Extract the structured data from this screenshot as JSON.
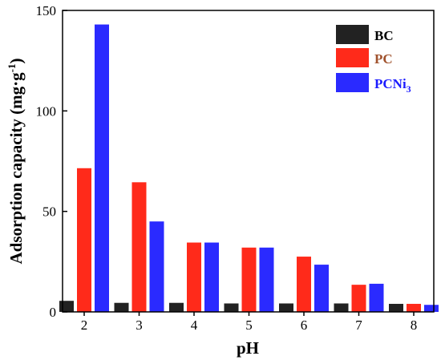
{
  "chart_data": {
    "type": "bar",
    "title": "",
    "xlabel": "pH",
    "ylabel_main": "Adsorption capacity (mg·g",
    "ylabel_sup": "-1",
    "ylabel_close": ")",
    "categories": [
      "2",
      "3",
      "4",
      "5",
      "6",
      "7",
      "8"
    ],
    "ylim": [
      0,
      150
    ],
    "yticks": [
      "0",
      "50",
      "100",
      "150"
    ],
    "grid": false,
    "legend_position": "top-right",
    "series": [
      {
        "name": "BC",
        "color": "#222222",
        "label_color": "#000000",
        "values": [
          5.5,
          4.5,
          4.5,
          4.2,
          4.2,
          4.2,
          4.0
        ]
      },
      {
        "name": "PC",
        "color": "#ff2a1a",
        "label_color": "#a0522d",
        "values": [
          71.5,
          64.5,
          34.5,
          32.0,
          27.5,
          13.5,
          4.0
        ]
      },
      {
        "name": "PCNi",
        "name_sub": "3",
        "color": "#2a2aff",
        "label_color": "#1a1aff",
        "values": [
          143.0,
          45.0,
          34.5,
          32.0,
          23.5,
          14.0,
          3.5
        ]
      }
    ]
  }
}
